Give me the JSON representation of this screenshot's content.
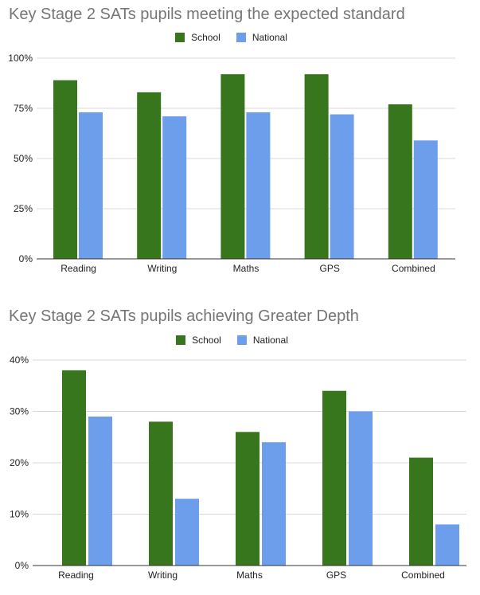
{
  "chart_data": [
    {
      "type": "bar",
      "title": "Key Stage 2 SATs pupils meeting the expected standard",
      "categories": [
        "Reading",
        "Writing",
        "Maths",
        "GPS",
        "Combined"
      ],
      "series": [
        {
          "name": "School",
          "values": [
            89,
            83,
            92,
            92,
            77
          ],
          "color": "#38761d"
        },
        {
          "name": "National",
          "values": [
            73,
            71,
            73,
            72,
            59
          ],
          "color": "#6d9eeb"
        }
      ],
      "yticks": [
        "0%",
        "25%",
        "50%",
        "75%",
        "100%"
      ],
      "ylim": [
        0,
        100
      ],
      "legend": "top-center",
      "grid": true
    },
    {
      "type": "bar",
      "title": "Key Stage 2 SATs pupils achieving Greater Depth",
      "categories": [
        "Reading",
        "Writing",
        "Maths",
        "GPS",
        "Combined"
      ],
      "series": [
        {
          "name": "School",
          "values": [
            38,
            28,
            26,
            34,
            21
          ],
          "color": "#38761d"
        },
        {
          "name": "National",
          "values": [
            29,
            13,
            24,
            30,
            8
          ],
          "color": "#6d9eeb"
        }
      ],
      "yticks": [
        "0%",
        "10%",
        "20%",
        "30%",
        "40%"
      ],
      "ylim": [
        0,
        40
      ],
      "legend": "top-center",
      "grid": true
    }
  ]
}
